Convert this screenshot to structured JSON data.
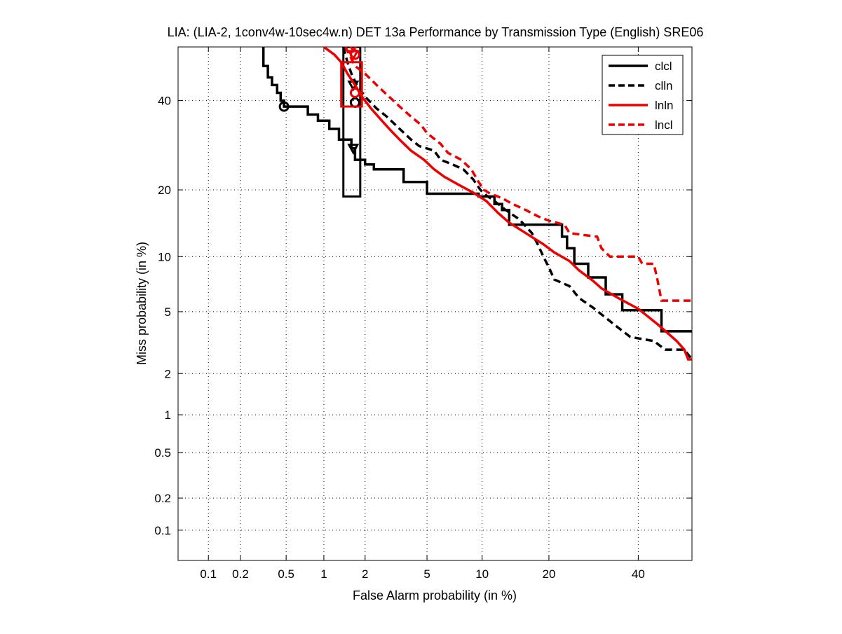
{
  "chart_data": {
    "type": "line",
    "title": "LIA: (LIA-2, 1conv4w-10sec4w.n) DET 13a Performance by Transmission Type (English) SRE06",
    "xlabel": "False Alarm probability (in %)",
    "ylabel": "Miss probability (in %)",
    "x_scale": "probit",
    "y_scale": "probit",
    "xlim": [
      0.05,
      54
    ],
    "ylim": [
      0.05,
      54
    ],
    "grid": true,
    "grid_style": "dotted",
    "legend_position": "top-right",
    "x_ticks": [
      {
        "value": 0.1,
        "label": "0.1"
      },
      {
        "value": 0.2,
        "label": "0.2"
      },
      {
        "value": 0.5,
        "label": "0.5"
      },
      {
        "value": 1,
        "label": "1"
      },
      {
        "value": 2,
        "label": "2"
      },
      {
        "value": 5,
        "label": "5"
      },
      {
        "value": 10,
        "label": "10"
      },
      {
        "value": 20,
        "label": "20"
      },
      {
        "value": 40,
        "label": "40"
      }
    ],
    "y_ticks": [
      {
        "value": 0.1,
        "label": "0.1"
      },
      {
        "value": 0.2,
        "label": "0.2"
      },
      {
        "value": 0.5,
        "label": "0.5"
      },
      {
        "value": 1,
        "label": "1"
      },
      {
        "value": 2,
        "label": "2"
      },
      {
        "value": 5,
        "label": "5"
      },
      {
        "value": 10,
        "label": "10"
      },
      {
        "value": 20,
        "label": "20"
      },
      {
        "value": 40,
        "label": "40"
      }
    ],
    "series": [
      {
        "name": "clcl",
        "color": "#000000",
        "dash": "solid",
        "points": [
          [
            0.32,
            54
          ],
          [
            0.32,
            49
          ],
          [
            0.35,
            49
          ],
          [
            0.35,
            46
          ],
          [
            0.38,
            46
          ],
          [
            0.38,
            44
          ],
          [
            0.42,
            44
          ],
          [
            0.42,
            42
          ],
          [
            0.45,
            42
          ],
          [
            0.45,
            40
          ],
          [
            0.48,
            40
          ],
          [
            0.48,
            38.5
          ],
          [
            0.75,
            38.5
          ],
          [
            0.75,
            36.5
          ],
          [
            0.9,
            36.5
          ],
          [
            0.9,
            35
          ],
          [
            1.1,
            35
          ],
          [
            1.1,
            33
          ],
          [
            1.3,
            33
          ],
          [
            1.3,
            30.5
          ],
          [
            1.6,
            30.5
          ],
          [
            1.6,
            28.5
          ],
          [
            1.7,
            28.5
          ],
          [
            1.7,
            26
          ],
          [
            2.0,
            26
          ],
          [
            2.0,
            25
          ],
          [
            2.3,
            25
          ],
          [
            2.3,
            24
          ],
          [
            3.6,
            24
          ],
          [
            3.6,
            21.5
          ],
          [
            5.0,
            21.5
          ],
          [
            5.0,
            19.3
          ],
          [
            9.6,
            19.3
          ],
          [
            9.6,
            18.8
          ],
          [
            11.5,
            18.8
          ],
          [
            11.5,
            17.5
          ],
          [
            12.5,
            17.5
          ],
          [
            12.5,
            16.5
          ],
          [
            13.5,
            16.5
          ],
          [
            13.5,
            14.2
          ],
          [
            22.5,
            14.2
          ],
          [
            22.5,
            12.5
          ],
          [
            23.5,
            12.5
          ],
          [
            23.5,
            11.0
          ],
          [
            25.0,
            11.0
          ],
          [
            25.0,
            9.2
          ],
          [
            28.0,
            9.2
          ],
          [
            28.0,
            7.8
          ],
          [
            32.0,
            7.8
          ],
          [
            32.0,
            6.3
          ],
          [
            36.0,
            6.3
          ],
          [
            36.0,
            5.1
          ],
          [
            46.0,
            5.1
          ],
          [
            46.0,
            3.8
          ],
          [
            54,
            3.8
          ]
        ],
        "det_point": [
          1.65,
          28.5
        ],
        "det_marker": "triangle-down",
        "mindcf_point": [
          0.48,
          38.5
        ],
        "mindcf_marker": "circle",
        "confidence_box": {
          "x": [
            1.4,
            1.85
          ],
          "y": [
            18.8,
            54
          ]
        }
      },
      {
        "name": "clln",
        "color": "#000000",
        "dash": "dashed",
        "points": [
          [
            1.4,
            54
          ],
          [
            1.5,
            50
          ],
          [
            1.6,
            47
          ],
          [
            1.75,
            44
          ],
          [
            2.0,
            41
          ],
          [
            2.4,
            38
          ],
          [
            2.8,
            36
          ],
          [
            3.4,
            33
          ],
          [
            4.0,
            30.5
          ],
          [
            4.5,
            29
          ],
          [
            5.5,
            28
          ],
          [
            6.0,
            26
          ],
          [
            7.0,
            25
          ],
          [
            8.0,
            24
          ],
          [
            9.0,
            22
          ],
          [
            9.8,
            20
          ],
          [
            10.5,
            19
          ],
          [
            11.5,
            18
          ],
          [
            13.0,
            16.5
          ],
          [
            15.0,
            15
          ],
          [
            17.0,
            13
          ],
          [
            18.0,
            11.5
          ],
          [
            19.0,
            10
          ],
          [
            20.0,
            8.8
          ],
          [
            21.0,
            7.6
          ],
          [
            24.0,
            7.0
          ],
          [
            26.0,
            6.0
          ],
          [
            29.0,
            5.3
          ],
          [
            32.0,
            4.6
          ],
          [
            35.0,
            4.0
          ],
          [
            38.0,
            3.5
          ],
          [
            44.0,
            3.3
          ],
          [
            47.0,
            2.9
          ],
          [
            52.0,
            2.9
          ],
          [
            54,
            2.5
          ]
        ],
        "det_point": [
          1.65,
          44
        ],
        "det_marker": "triangle-down",
        "mindcf_point": [
          1.7,
          39.5
        ],
        "mindcf_marker": "circle"
      },
      {
        "name": "lnln",
        "color": "#ee0000",
        "dash": "solid",
        "points": [
          [
            1.0,
            54
          ],
          [
            1.2,
            52
          ],
          [
            1.35,
            50
          ],
          [
            1.5,
            47
          ],
          [
            1.7,
            44
          ],
          [
            1.9,
            41
          ],
          [
            2.2,
            38
          ],
          [
            2.6,
            35
          ],
          [
            3.0,
            32.5
          ],
          [
            3.5,
            30
          ],
          [
            4.0,
            28
          ],
          [
            4.8,
            26
          ],
          [
            5.5,
            24
          ],
          [
            6.3,
            22.5
          ],
          [
            7.5,
            21
          ],
          [
            9.0,
            19.5
          ],
          [
            10.5,
            18
          ],
          [
            12.0,
            16
          ],
          [
            13.5,
            14.5
          ],
          [
            16.0,
            13
          ],
          [
            19.0,
            11.5
          ],
          [
            21.0,
            10.5
          ],
          [
            24.0,
            9.5
          ],
          [
            26.0,
            8.5
          ],
          [
            29.0,
            7.5
          ],
          [
            31.0,
            6.8
          ],
          [
            35.0,
            6.0
          ],
          [
            40.0,
            5.2
          ],
          [
            45.0,
            4.2
          ],
          [
            50.0,
            3.3
          ],
          [
            52.0,
            2.9
          ],
          [
            53.0,
            2.5
          ],
          [
            54,
            2.5
          ]
        ],
        "det_point": [
          1.65,
          52
        ],
        "det_marker": "triangle-down",
        "mindcf_point": [
          1.7,
          42
        ],
        "mindcf_marker": "circle",
        "confidence_box": {
          "x": [
            1.35,
            1.9
          ],
          "y": [
            38.5,
            50
          ]
        }
      },
      {
        "name": "lncl",
        "color": "#ee0000",
        "dash": "dashed",
        "points": [
          [
            1.45,
            54
          ],
          [
            1.7,
            49
          ],
          [
            2.0,
            47
          ],
          [
            2.4,
            44
          ],
          [
            2.9,
            41
          ],
          [
            3.4,
            38.5
          ],
          [
            4.0,
            36
          ],
          [
            4.6,
            34
          ],
          [
            5.0,
            32
          ],
          [
            6.0,
            29.5
          ],
          [
            6.6,
            27.5
          ],
          [
            7.8,
            26
          ],
          [
            8.8,
            24
          ],
          [
            9.6,
            21.5
          ],
          [
            10.2,
            20
          ],
          [
            11.0,
            19.3
          ],
          [
            12.5,
            18.5
          ],
          [
            14.0,
            17.5
          ],
          [
            16.0,
            16.5
          ],
          [
            18.0,
            15.5
          ],
          [
            20.0,
            14.8
          ],
          [
            23.0,
            14.2
          ],
          [
            24.0,
            13
          ],
          [
            30.0,
            12.5
          ],
          [
            31.0,
            11
          ],
          [
            33.0,
            10
          ],
          [
            40.0,
            10
          ],
          [
            41.0,
            9.2
          ],
          [
            44.0,
            9.2
          ],
          [
            45.0,
            7.5
          ],
          [
            46.0,
            5.8
          ],
          [
            54,
            5.8
          ]
        ],
        "det_point": [
          1.65,
          54
        ],
        "det_marker": "triangle-down",
        "mindcf_point": [
          1.7,
          52
        ],
        "mindcf_marker": "circle"
      }
    ]
  }
}
